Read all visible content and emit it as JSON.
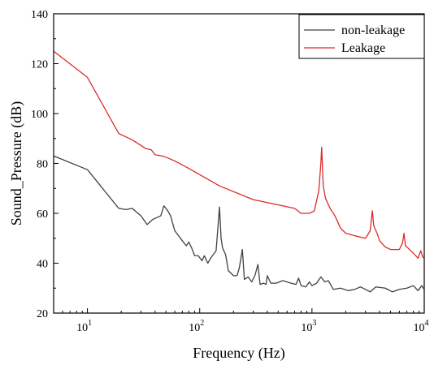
{
  "chart_data": {
    "type": "line",
    "title": "",
    "xlabel": "Frequency (Hz)",
    "ylabel": "Sound_Pressure (dB)",
    "x_scale": "log",
    "xlim": [
      5,
      10000
    ],
    "ylim": [
      20,
      140
    ],
    "grid": false,
    "legend_position": "top-right",
    "y_ticks": [
      "20",
      "40",
      "60",
      "80",
      "100",
      "120",
      "140"
    ],
    "x_ticks": [
      {
        "value": 10,
        "base": "10",
        "exp": "1"
      },
      {
        "value": 100,
        "base": "10",
        "exp": "2"
      },
      {
        "value": 1000,
        "base": "10",
        "exp": "3"
      },
      {
        "value": 10000,
        "base": "10",
        "exp": "4"
      }
    ],
    "series": [
      {
        "name": "non-leakage",
        "color": "#404040",
        "points": [
          [
            5,
            83
          ],
          [
            10,
            77.5
          ],
          [
            19,
            62
          ],
          [
            22,
            61.5
          ],
          [
            25,
            62
          ],
          [
            30,
            59
          ],
          [
            34,
            55.5
          ],
          [
            38,
            57.5
          ],
          [
            45,
            59
          ],
          [
            48,
            63
          ],
          [
            52,
            61
          ],
          [
            55,
            59
          ],
          [
            60,
            53
          ],
          [
            70,
            49
          ],
          [
            76,
            47
          ],
          [
            80,
            48.5
          ],
          [
            85,
            46
          ],
          [
            90,
            43
          ],
          [
            97,
            43
          ],
          [
            105,
            41
          ],
          [
            110,
            43
          ],
          [
            118,
            40
          ],
          [
            125,
            42
          ],
          [
            140,
            45
          ],
          [
            150,
            62.5
          ],
          [
            155,
            50
          ],
          [
            160,
            46
          ],
          [
            170,
            43.5
          ],
          [
            180,
            37
          ],
          [
            200,
            35
          ],
          [
            215,
            35
          ],
          [
            225,
            38
          ],
          [
            240,
            45.5
          ],
          [
            250,
            33.5
          ],
          [
            270,
            34.5
          ],
          [
            290,
            32.5
          ],
          [
            310,
            35
          ],
          [
            330,
            39.5
          ],
          [
            345,
            31.5
          ],
          [
            370,
            32
          ],
          [
            390,
            31.5
          ],
          [
            400,
            35
          ],
          [
            430,
            32
          ],
          [
            480,
            32
          ],
          [
            550,
            33
          ],
          [
            650,
            32
          ],
          [
            720,
            31.5
          ],
          [
            760,
            34
          ],
          [
            800,
            31
          ],
          [
            880,
            30.5
          ],
          [
            950,
            32.5
          ],
          [
            1000,
            31
          ],
          [
            1100,
            32
          ],
          [
            1200,
            34.5
          ],
          [
            1300,
            32.5
          ],
          [
            1400,
            33
          ],
          [
            1550,
            29.5
          ],
          [
            1800,
            30
          ],
          [
            2100,
            29
          ],
          [
            2400,
            29.5
          ],
          [
            2700,
            30.5
          ],
          [
            3000,
            29.5
          ],
          [
            3300,
            28.5
          ],
          [
            3700,
            30.5
          ],
          [
            4500,
            30
          ],
          [
            5200,
            28.5
          ],
          [
            6000,
            29.5
          ],
          [
            7000,
            30
          ],
          [
            8000,
            31
          ],
          [
            8800,
            29
          ],
          [
            9500,
            31
          ],
          [
            10000,
            29.5
          ]
        ]
      },
      {
        "name": "Leakage",
        "color": "#dd2a2a",
        "points": [
          [
            5,
            125
          ],
          [
            10,
            114.5
          ],
          [
            19,
            92
          ],
          [
            25,
            89.5
          ],
          [
            33,
            86
          ],
          [
            37,
            85.5
          ],
          [
            40,
            83.5
          ],
          [
            46,
            83
          ],
          [
            50,
            82.5
          ],
          [
            60,
            81
          ],
          [
            80,
            78
          ],
          [
            150,
            71
          ],
          [
            300,
            65.5
          ],
          [
            700,
            62
          ],
          [
            800,
            60
          ],
          [
            950,
            60
          ],
          [
            1050,
            61
          ],
          [
            1150,
            69
          ],
          [
            1200,
            80
          ],
          [
            1220,
            86.5
          ],
          [
            1260,
            71
          ],
          [
            1320,
            66
          ],
          [
            1450,
            62
          ],
          [
            1600,
            59
          ],
          [
            1800,
            54
          ],
          [
            2000,
            52
          ],
          [
            2400,
            51
          ],
          [
            3000,
            50
          ],
          [
            3300,
            53
          ],
          [
            3450,
            61
          ],
          [
            3550,
            55
          ],
          [
            3800,
            52
          ],
          [
            4000,
            49
          ],
          [
            4500,
            46.5
          ],
          [
            5000,
            45.5
          ],
          [
            6000,
            45.5
          ],
          [
            6400,
            48
          ],
          [
            6600,
            52
          ],
          [
            6800,
            47
          ],
          [
            7200,
            46
          ],
          [
            8000,
            44
          ],
          [
            8800,
            42
          ],
          [
            9300,
            45
          ],
          [
            9700,
            42.5
          ],
          [
            10000,
            42
          ]
        ]
      }
    ]
  }
}
